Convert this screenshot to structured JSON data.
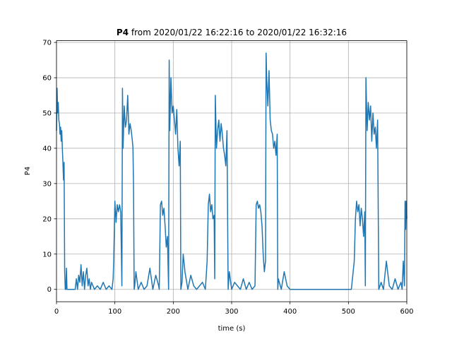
{
  "chart_data": {
    "type": "line",
    "title_bold": "P4",
    "title": "from 2020/01/22 16:22:16 to 2020/01/22 16:32:16",
    "x_label": "time (s)",
    "y_label": "P4",
    "color": "#1f77b4",
    "grid": true,
    "xlim": [
      0,
      600
    ],
    "xticks": [
      0,
      100,
      200,
      300,
      400,
      500,
      600
    ],
    "ylim": [
      -3.5,
      70.5
    ],
    "yticks": [
      0,
      10,
      20,
      30,
      40,
      50,
      60,
      70
    ],
    "x": [
      0,
      1,
      2,
      3,
      4,
      5,
      6,
      7,
      8,
      9,
      10,
      11,
      12,
      13,
      14,
      15,
      16,
      17,
      18,
      20,
      25,
      30,
      32,
      34,
      36,
      38,
      40,
      42,
      44,
      46,
      48,
      50,
      52,
      54,
      56,
      58,
      60,
      65,
      70,
      75,
      80,
      85,
      90,
      95,
      97,
      98,
      100,
      102,
      104,
      106,
      108,
      110,
      112,
      113,
      114,
      116,
      118,
      120,
      122,
      124,
      126,
      128,
      130,
      131,
      132,
      133,
      134,
      136,
      140,
      145,
      150,
      155,
      160,
      165,
      170,
      175,
      176,
      178,
      180,
      182,
      184,
      186,
      188,
      190,
      192,
      193,
      194,
      196,
      198,
      200,
      202,
      204,
      206,
      208,
      210,
      212,
      213,
      215,
      217,
      220,
      225,
      230,
      235,
      240,
      245,
      250,
      255,
      258,
      260,
      262,
      264,
      266,
      268,
      270,
      271,
      272,
      274,
      276,
      278,
      280,
      282,
      284,
      286,
      288,
      290,
      292,
      294,
      296,
      300,
      305,
      310,
      315,
      320,
      325,
      330,
      335,
      340,
      342,
      344,
      346,
      348,
      350,
      352,
      354,
      356,
      358,
      359,
      360,
      362,
      364,
      366,
      368,
      370,
      372,
      374,
      376,
      378,
      379,
      380,
      385,
      390,
      395,
      400,
      405,
      450,
      505,
      510,
      512,
      514,
      516,
      518,
      520,
      522,
      524,
      526,
      528,
      529,
      530,
      532,
      534,
      536,
      538,
      540,
      542,
      544,
      546,
      548,
      550,
      552,
      556,
      560,
      565,
      570,
      575,
      580,
      585,
      590,
      592,
      594,
      596,
      597,
      598,
      599,
      600
    ],
    "values": [
      45,
      57,
      50,
      53,
      48,
      47,
      44,
      46,
      42,
      45,
      40,
      36,
      31,
      36,
      5,
      0,
      0,
      6,
      0,
      0,
      0,
      0,
      0,
      3,
      0,
      4,
      2,
      7,
      1,
      5,
      0,
      4,
      6,
      1,
      3,
      0,
      2,
      0,
      1,
      0,
      2,
      0,
      1,
      0,
      3,
      8,
      25,
      19,
      24,
      22,
      24,
      22,
      1,
      57,
      40,
      52,
      46,
      48,
      55,
      44,
      47,
      45,
      42,
      40,
      28,
      0,
      1,
      5,
      0,
      2,
      0,
      1,
      6,
      0,
      4,
      1,
      0,
      24,
      25,
      21,
      23,
      18,
      12,
      15,
      0,
      65,
      45,
      60,
      50,
      52,
      48,
      44,
      51,
      40,
      35,
      42,
      0,
      2,
      10,
      5,
      0,
      4,
      1,
      0,
      1,
      2,
      0,
      8,
      24,
      27,
      22,
      24,
      20,
      21,
      3,
      55,
      40,
      45,
      48,
      42,
      47,
      44,
      40,
      38,
      35,
      45,
      0,
      5,
      0,
      2,
      1,
      0,
      3,
      0,
      2,
      0,
      1,
      24,
      25,
      23,
      24,
      22,
      18,
      10,
      5,
      8,
      67,
      60,
      52,
      62,
      48,
      45,
      44,
      40,
      42,
      38,
      44,
      0,
      3,
      0,
      5,
      1,
      0,
      0,
      0,
      0,
      8,
      20,
      25,
      22,
      24,
      18,
      23,
      20,
      15,
      22,
      1,
      60,
      45,
      53,
      48,
      52,
      42,
      50,
      44,
      46,
      40,
      48,
      0,
      2,
      0,
      8,
      1,
      0,
      3,
      0,
      2,
      0,
      8,
      1,
      25,
      17,
      25,
      20
    ]
  }
}
